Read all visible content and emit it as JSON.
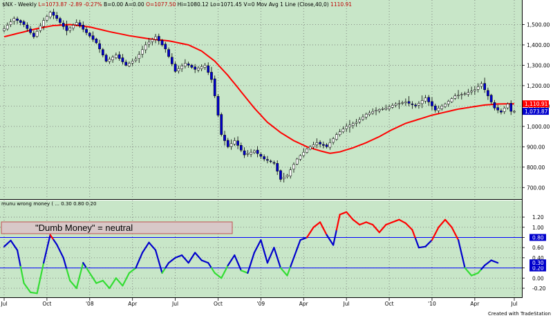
{
  "chart_data": [
    {
      "type": "candlestick",
      "header": {
        "symbol": "$NX - Weekly",
        "stats": [
          {
            "text": "L=1073.87",
            "color": "#c00000"
          },
          {
            "text": "-2.89",
            "color": "#c00000"
          },
          {
            "text": "-0.27%",
            "color": "#c00000"
          },
          {
            "text": "B=0.00",
            "color": "#000000"
          },
          {
            "text": "A=0.00",
            "color": "#000000"
          },
          {
            "text": "O=1077.50",
            "color": "#c00000"
          },
          {
            "text": "Hi=1080.12",
            "color": "#000000"
          },
          {
            "text": "Lo=1071.45",
            "color": "#000000"
          },
          {
            "text": "V=0",
            "color": "#000000"
          },
          {
            "text": "Mov Avg 1 Line (Close,40,0)",
            "color": "#000000"
          },
          {
            "text": "1110.91",
            "color": "#c00000"
          }
        ]
      },
      "ylim": [
        650,
        1600
      ],
      "y_ticks": [
        700,
        800,
        900,
        1000,
        1100,
        1200,
        1300,
        1400,
        1500
      ],
      "y_tick_labels": [
        "700.00",
        "800.00",
        "900.00",
        "1,000.00",
        "1,100.00",
        "1,200.00",
        "1,300.00",
        "1,400.00",
        "1,500.00"
      ],
      "last_price_label": "1,073.87",
      "ma_label": "1,110.91",
      "ma_color": "#ff0000",
      "up_color": "#ffffff",
      "down_color": "#0000cc",
      "price_key": [
        [
          0,
          1480
        ],
        [
          3,
          1530
        ],
        [
          6,
          1500
        ],
        [
          9,
          1440
        ],
        [
          12,
          1520
        ],
        [
          14,
          1560
        ],
        [
          16,
          1530
        ],
        [
          19,
          1470
        ],
        [
          22,
          1510
        ],
        [
          25,
          1460
        ],
        [
          28,
          1410
        ],
        [
          31,
          1320
        ],
        [
          34,
          1350
        ],
        [
          37,
          1300
        ],
        [
          40,
          1330
        ],
        [
          43,
          1400
        ],
        [
          46,
          1440
        ],
        [
          49,
          1380
        ],
        [
          52,
          1270
        ],
        [
          55,
          1310
        ],
        [
          58,
          1280
        ],
        [
          61,
          1300
        ],
        [
          63,
          1230
        ],
        [
          64,
          1150
        ],
        [
          66,
          960
        ],
        [
          68,
          900
        ],
        [
          70,
          930
        ],
        [
          73,
          860
        ],
        [
          76,
          880
        ],
        [
          79,
          840
        ],
        [
          82,
          820
        ],
        [
          84,
          740
        ],
        [
          86,
          760
        ],
        [
          89,
          840
        ],
        [
          92,
          890
        ],
        [
          95,
          920
        ],
        [
          98,
          900
        ],
        [
          101,
          960
        ],
        [
          104,
          1000
        ],
        [
          107,
          1020
        ],
        [
          110,
          1060
        ],
        [
          113,
          1080
        ],
        [
          116,
          1090
        ],
        [
          119,
          1110
        ],
        [
          122,
          1120
        ],
        [
          125,
          1100
        ],
        [
          128,
          1140
        ],
        [
          131,
          1080
        ],
        [
          134,
          1110
        ],
        [
          137,
          1150
        ],
        [
          140,
          1160
        ],
        [
          143,
          1180
        ],
        [
          145,
          1210
        ],
        [
          147,
          1150
        ],
        [
          149,
          1090
        ],
        [
          151,
          1070
        ],
        [
          153,
          1110
        ],
        [
          154,
          1073.87
        ]
      ],
      "ma_key": [
        [
          0,
          1440
        ],
        [
          5,
          1460
        ],
        [
          10,
          1480
        ],
        [
          15,
          1495
        ],
        [
          20,
          1500
        ],
        [
          26,
          1488
        ],
        [
          32,
          1465
        ],
        [
          38,
          1445
        ],
        [
          44,
          1430
        ],
        [
          50,
          1420
        ],
        [
          56,
          1400
        ],
        [
          60,
          1370
        ],
        [
          64,
          1320
        ],
        [
          68,
          1250
        ],
        [
          72,
          1170
        ],
        [
          76,
          1090
        ],
        [
          80,
          1020
        ],
        [
          84,
          970
        ],
        [
          88,
          930
        ],
        [
          92,
          900
        ],
        [
          96,
          880
        ],
        [
          99,
          868
        ],
        [
          102,
          875
        ],
        [
          106,
          895
        ],
        [
          110,
          920
        ],
        [
          114,
          950
        ],
        [
          118,
          985
        ],
        [
          122,
          1015
        ],
        [
          126,
          1035
        ],
        [
          130,
          1055
        ],
        [
          134,
          1070
        ],
        [
          138,
          1085
        ],
        [
          142,
          1095
        ],
        [
          146,
          1105
        ],
        [
          150,
          1110
        ],
        [
          154,
          1110.91
        ]
      ]
    },
    {
      "type": "line",
      "title": "munu wrong money ( ... 0.30 0.80 0.20",
      "ylim": [
        -0.35,
        1.5
      ],
      "y_ticks": [
        -0.2,
        0.0,
        0.2,
        0.4,
        0.6,
        0.8,
        1.0,
        1.2
      ],
      "y_tick_labels": [
        "-0.20",
        "0.00",
        "0.20",
        "0.40",
        "0.60",
        "0.80",
        "1.00",
        "1.20"
      ],
      "reference_lines": [
        {
          "value": 0.8,
          "label": "0.80",
          "color": "#0000ff"
        },
        {
          "value": 0.2,
          "label": "0.20",
          "color": "#0000ff"
        }
      ],
      "last_value_label": "0.30",
      "colors": {
        "high": "#ff0000",
        "mid": "#0000cc",
        "low": "#33dd33"
      },
      "annotation": "\"Dumb Money\" = neutral",
      "oscillator_key": [
        [
          0,
          0.62
        ],
        [
          2,
          0.74
        ],
        [
          4,
          0.55
        ],
        [
          6,
          -0.1
        ],
        [
          8,
          -0.28
        ],
        [
          10,
          -0.3
        ],
        [
          12,
          0.3
        ],
        [
          14,
          0.85
        ],
        [
          16,
          0.66
        ],
        [
          18,
          0.4
        ],
        [
          20,
          -0.05
        ],
        [
          22,
          -0.2
        ],
        [
          24,
          0.3
        ],
        [
          26,
          0.1
        ],
        [
          28,
          -0.1
        ],
        [
          30,
          -0.05
        ],
        [
          32,
          -0.2
        ],
        [
          34,
          0.0
        ],
        [
          36,
          -0.15
        ],
        [
          38,
          0.1
        ],
        [
          40,
          0.2
        ],
        [
          42,
          0.5
        ],
        [
          44,
          0.7
        ],
        [
          46,
          0.55
        ],
        [
          48,
          0.1
        ],
        [
          50,
          0.3
        ],
        [
          52,
          0.4
        ],
        [
          54,
          0.45
        ],
        [
          56,
          0.3
        ],
        [
          58,
          0.5
        ],
        [
          60,
          0.35
        ],
        [
          62,
          0.3
        ],
        [
          64,
          0.1
        ],
        [
          66,
          0.0
        ],
        [
          68,
          0.25
        ],
        [
          70,
          0.45
        ],
        [
          72,
          0.15
        ],
        [
          74,
          0.1
        ],
        [
          76,
          0.5
        ],
        [
          78,
          0.75
        ],
        [
          80,
          0.3
        ],
        [
          82,
          0.6
        ],
        [
          84,
          0.2
        ],
        [
          86,
          0.05
        ],
        [
          88,
          0.4
        ],
        [
          90,
          0.75
        ],
        [
          92,
          0.8
        ],
        [
          94,
          1.0
        ],
        [
          96,
          1.1
        ],
        [
          98,
          0.85
        ],
        [
          100,
          0.65
        ],
        [
          102,
          1.25
        ],
        [
          104,
          1.3
        ],
        [
          106,
          1.15
        ],
        [
          108,
          1.05
        ],
        [
          110,
          1.1
        ],
        [
          112,
          1.05
        ],
        [
          114,
          0.9
        ],
        [
          116,
          1.05
        ],
        [
          118,
          1.1
        ],
        [
          120,
          1.15
        ],
        [
          122,
          1.08
        ],
        [
          124,
          0.95
        ],
        [
          126,
          0.6
        ],
        [
          128,
          0.62
        ],
        [
          130,
          0.75
        ],
        [
          132,
          1.0
        ],
        [
          134,
          1.15
        ],
        [
          136,
          1.0
        ],
        [
          138,
          0.75
        ],
        [
          140,
          0.2
        ],
        [
          142,
          0.05
        ],
        [
          144,
          0.1
        ],
        [
          146,
          0.25
        ],
        [
          148,
          0.35
        ],
        [
          150,
          0.3
        ]
      ]
    }
  ],
  "x_axis": {
    "labels": [
      "Jul",
      "Oct",
      "'08",
      "Apr",
      "Jul",
      "Oct",
      "'09",
      "Apr",
      "Jul",
      "Oct",
      "'10",
      "Apr",
      "Jul"
    ],
    "label_weeks": [
      0,
      13,
      26,
      39,
      52,
      65,
      78,
      91,
      104,
      117,
      130,
      143,
      155
    ]
  },
  "credit": "Created with TradeStation"
}
